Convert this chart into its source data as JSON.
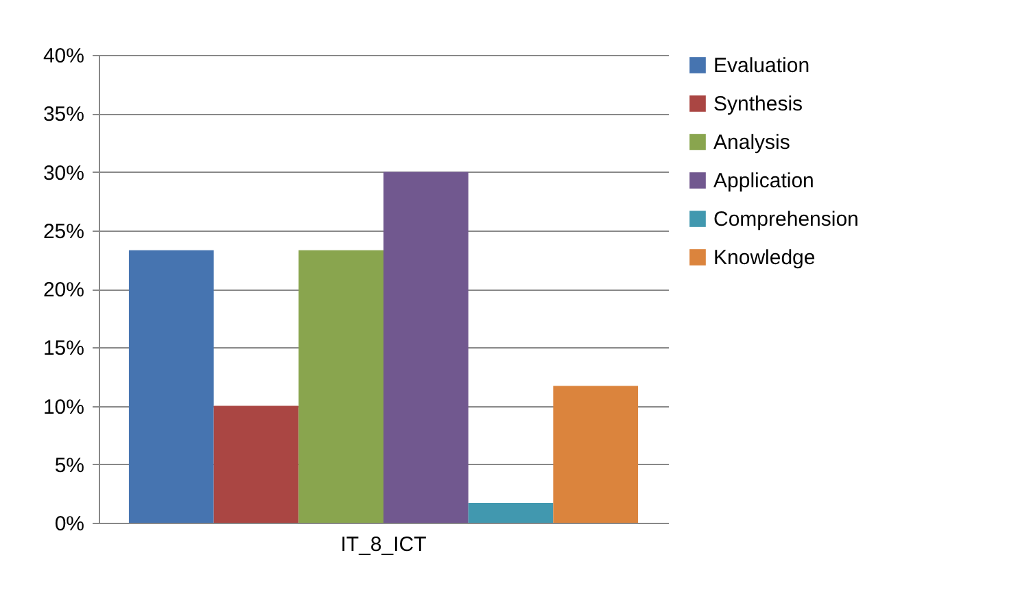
{
  "chart_data": {
    "type": "bar",
    "categories": [
      "IT_8_ICT"
    ],
    "series": [
      {
        "name": "Evaluation",
        "color": "#4674b0",
        "values": [
          23.3
        ]
      },
      {
        "name": "Synthesis",
        "color": "#aa4643",
        "values": [
          10
        ]
      },
      {
        "name": "Analysis",
        "color": "#89a54e",
        "values": [
          23.3
        ]
      },
      {
        "name": "Application",
        "color": "#71588f",
        "values": [
          30
        ]
      },
      {
        "name": "Comprehension",
        "color": "#4198af",
        "values": [
          1.7
        ]
      },
      {
        "name": "Knowledge",
        "color": "#db843d",
        "values": [
          11.7
        ]
      }
    ],
    "ylim": [
      0,
      40
    ],
    "yticks": [
      {
        "value": 0,
        "label": "0%"
      },
      {
        "value": 5,
        "label": "5%"
      },
      {
        "value": 10,
        "label": "10%"
      },
      {
        "value": 15,
        "label": "15%"
      },
      {
        "value": 20,
        "label": "20%"
      },
      {
        "value": 25,
        "label": "25%"
      },
      {
        "value": 30,
        "label": "30%"
      },
      {
        "value": 35,
        "label": "35%"
      },
      {
        "value": 40,
        "label": "40%"
      }
    ],
    "grid": "y",
    "legend": "right"
  }
}
